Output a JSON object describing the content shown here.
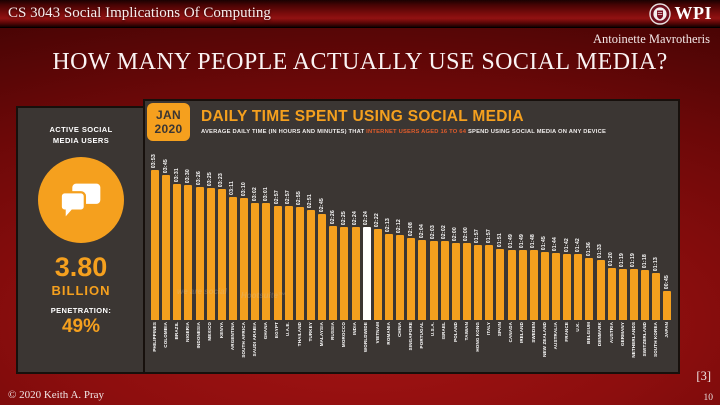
{
  "header": {
    "course_title": "CS 3043 Social Implications Of Computing",
    "logo_text": "WPI"
  },
  "author": "Antoinette Mavrotheris",
  "title": "HOW MANY PEOPLE ACTUALLY USE SOCIAL MEDIA?",
  "stat_panel": {
    "label": "ACTIVE SOCIAL MEDIA USERS",
    "icon": "chat-bubbles-icon",
    "value": "3.80",
    "unit": "BILLION",
    "penetration_label": "PENETRATION:",
    "penetration_value": "49%"
  },
  "chart_data": {
    "type": "bar",
    "badge_line1": "JAN",
    "badge_line2": "2020",
    "title": "DAILY TIME SPENT USING SOCIAL MEDIA",
    "subtitle_pre": "AVERAGE DAILY TIME (IN HOURS AND MINUTES) THAT ",
    "subtitle_highlight": "INTERNET USERS AGED 16 TO 64",
    "subtitle_post": " SPEND USING SOCIAL MEDIA ON ANY DEVICE",
    "value_format": "hh:mm per day",
    "legend": "none",
    "grid": "off",
    "highlight_category": "WORLDWIDE",
    "bar_color": "#F5A01E",
    "highlight_bar_color": "#FFFFFF",
    "background_color": "#3B3633",
    "categories": [
      "PHILIPPINES",
      "COLOMBIA",
      "BRAZIL",
      "NIGERIA",
      "INDONESIA",
      "MEXICO",
      "KENYA",
      "ARGENTINA",
      "SOUTH AFRICA",
      "SAUDI ARABIA",
      "GHANA",
      "EGYPT",
      "U.A.E.",
      "THAILAND",
      "TURKEY",
      "MALAYSIA",
      "RUSSIA",
      "MOROCCO",
      "INDIA",
      "WORLDWIDE",
      "VIETNAM",
      "ROMANIA",
      "CHINA",
      "SINGAPORE",
      "PORTUGAL",
      "U.S.A.",
      "ISRAEL",
      "POLAND",
      "TAIWAN",
      "HONG KONG",
      "ITALY",
      "SPAIN",
      "CANADA",
      "IRELAND",
      "SWEDEN",
      "NEW ZEALAND",
      "AUSTRALIA",
      "FRANCE",
      "U.K.",
      "BELGIUM",
      "DENMARK",
      "AUSTRIA",
      "GERMANY",
      "NETHERLANDS",
      "SWITZERLAND",
      "SOUTH KOREA",
      "JAPAN"
    ],
    "values": [
      "03:53",
      "03:45",
      "03:31",
      "03:30",
      "03:26",
      "03:25",
      "03:23",
      "03:11",
      "03:10",
      "03:02",
      "03:01",
      "02:57",
      "02:57",
      "02:55",
      "02:51",
      "02:45",
      "02:26",
      "02:25",
      "02:24",
      "02:24",
      "02:22",
      "02:13",
      "02:12",
      "02:08",
      "02:04",
      "02:03",
      "02:02",
      "02:00",
      "02:00",
      "01:57",
      "01:57",
      "01:51",
      "01:49",
      "01:49",
      "01:48",
      "01:45",
      "01:44",
      "01:42",
      "01:42",
      "01:36",
      "01:33",
      "01:20",
      "01:19",
      "01:19",
      "01:18",
      "01:13",
      "00:45"
    ],
    "values_minutes": [
      233,
      225,
      211,
      210,
      206,
      205,
      203,
      191,
      190,
      182,
      181,
      177,
      177,
      175,
      171,
      165,
      146,
      145,
      144,
      144,
      142,
      133,
      132,
      128,
      124,
      123,
      122,
      120,
      120,
      117,
      117,
      111,
      109,
      109,
      108,
      105,
      104,
      102,
      102,
      96,
      93,
      80,
      79,
      79,
      78,
      73,
      45
    ],
    "watermarks": [
      "we are social",
      "Hootsuite™"
    ]
  },
  "footer": {
    "copyright": "© 2020 Keith A. Pray",
    "reference": "[3]",
    "page_number": "10"
  },
  "colors": {
    "accent_orange": "#F5A01E",
    "highlight_white": "#FFFFFF",
    "subtitle_highlight": "#E25C2B",
    "chart_background": "#3B3633",
    "slide_red": "#8D0E0E"
  }
}
